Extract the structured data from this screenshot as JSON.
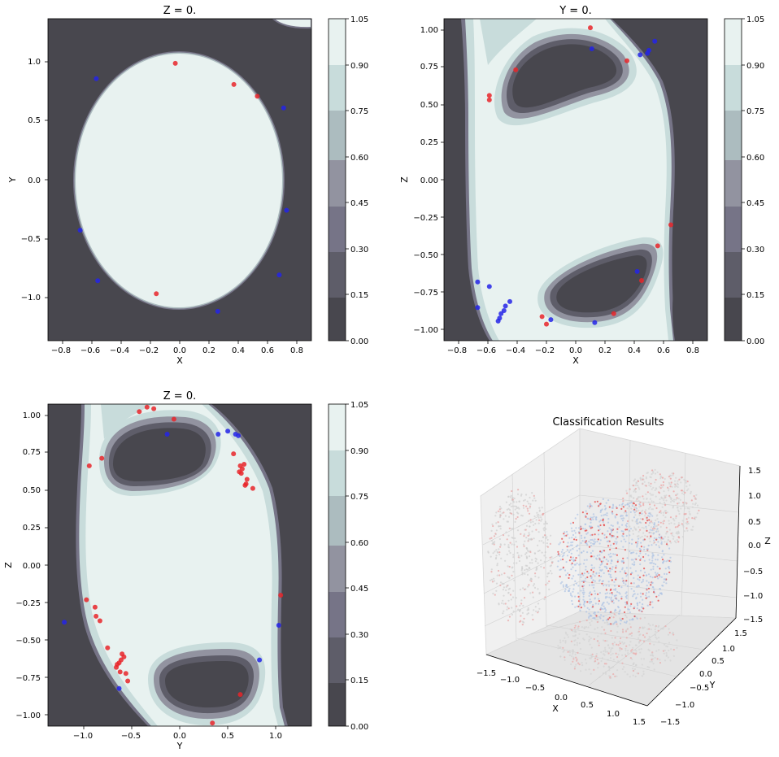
{
  "chart_data": [
    {
      "type": "contour",
      "title": "Z = 0.",
      "xlabel": "X",
      "ylabel": "Y",
      "xlim": [
        -0.9,
        0.9
      ],
      "ylim": [
        -1.37,
        1.37
      ],
      "xticks": [
        -0.8,
        -0.6,
        -0.4,
        -0.2,
        0.0,
        0.2,
        0.4,
        0.6,
        0.8
      ],
      "xticklabels": [
        "−0.8",
        "−0.6",
        "−0.4",
        "−0.2",
        "0.0",
        "0.2",
        "0.4",
        "0.6",
        "0.8"
      ],
      "yticks": [
        -1.0,
        -0.5,
        0.0,
        0.5,
        1.0
      ],
      "yticklabels": [
        "−1.0",
        "−0.5",
        "0.0",
        "0.5",
        "1.0"
      ],
      "colorbar_ticks": [
        "0.00",
        "0.15",
        "0.30",
        "0.45",
        "0.60",
        "0.75",
        "0.90",
        "1.05"
      ],
      "points_red": [
        [
          -0.03,
          0.99
        ],
        [
          0.37,
          0.81
        ],
        [
          0.53,
          0.71
        ],
        [
          -0.16,
          -0.97
        ]
      ],
      "points_blue": [
        [
          -0.57,
          0.86
        ],
        [
          0.71,
          0.61
        ],
        [
          0.73,
          -0.26
        ],
        [
          -0.68,
          -0.43
        ],
        [
          -0.56,
          -0.86
        ],
        [
          0.68,
          -0.81
        ],
        [
          0.26,
          -1.12
        ]
      ]
    },
    {
      "type": "contour",
      "title": "Y = 0.",
      "xlabel": "X",
      "ylabel": "Z",
      "xlim": [
        -0.9,
        0.9
      ],
      "ylim": [
        -1.07,
        1.07
      ],
      "xticks": [
        -0.8,
        -0.6,
        -0.4,
        -0.2,
        0.0,
        0.2,
        0.4,
        0.6,
        0.8
      ],
      "xticklabels": [
        "−0.8",
        "−0.6",
        "−0.4",
        "−0.2",
        "0.0",
        "0.2",
        "0.4",
        "0.6",
        "0.8"
      ],
      "yticks": [
        -1.0,
        -0.75,
        -0.5,
        -0.25,
        0.0,
        0.25,
        0.5,
        0.75,
        1.0
      ],
      "yticklabels": [
        "−1.00",
        "−0.75",
        "−0.50",
        "−0.25",
        "0.00",
        "0.25",
        "0.50",
        "0.75",
        "1.00"
      ],
      "colorbar_ticks": [
        "0.00",
        "0.15",
        "0.30",
        "0.45",
        "0.60",
        "0.75",
        "0.90",
        "1.05"
      ],
      "points_red": [
        [
          0.1,
          1.01
        ],
        [
          0.35,
          0.79
        ],
        [
          -0.41,
          0.73
        ],
        [
          -0.59,
          0.56
        ],
        [
          -0.59,
          0.53
        ],
        [
          0.65,
          -0.3
        ],
        [
          0.56,
          -0.44
        ],
        [
          0.45,
          -0.67
        ],
        [
          -0.23,
          -0.91
        ],
        [
          0.26,
          -0.89
        ],
        [
          -0.2,
          -0.96
        ]
      ],
      "points_blue": [
        [
          0.11,
          0.87
        ],
        [
          0.54,
          0.92
        ],
        [
          0.5,
          0.86
        ],
        [
          0.49,
          0.84
        ],
        [
          0.44,
          0.83
        ],
        [
          0.42,
          -0.61
        ],
        [
          -0.67,
          -0.68
        ],
        [
          -0.59,
          -0.71
        ],
        [
          -0.67,
          -0.85
        ],
        [
          -0.45,
          -0.81
        ],
        [
          -0.48,
          -0.84
        ],
        [
          -0.49,
          -0.87
        ],
        [
          -0.51,
          -0.89
        ],
        [
          -0.52,
          -0.92
        ],
        [
          -0.53,
          -0.94
        ],
        [
          -0.17,
          -0.93
        ],
        [
          0.13,
          -0.95
        ]
      ]
    },
    {
      "type": "contour",
      "title": "Z = 0.",
      "xlabel": "Y",
      "ylabel": "Z",
      "xlim": [
        -1.37,
        1.37
      ],
      "ylim": [
        -1.07,
        1.07
      ],
      "xticks": [
        -1.0,
        -0.5,
        0.0,
        0.5,
        1.0
      ],
      "xticklabels": [
        "−1.0",
        "−0.5",
        "0.0",
        "0.5",
        "1.0"
      ],
      "yticks": [
        -1.0,
        -0.75,
        -0.5,
        -0.25,
        0.0,
        0.25,
        0.5,
        0.75,
        1.0
      ],
      "yticklabels": [
        "−1.00",
        "−0.75",
        "−0.50",
        "−0.25",
        "0.00",
        "0.25",
        "0.50",
        "0.75",
        "1.00"
      ],
      "colorbar_ticks": [
        "0.00",
        "0.15",
        "0.30",
        "0.45",
        "0.60",
        "0.75",
        "0.90",
        "1.05"
      ],
      "points_red": [
        [
          -0.42,
          1.02
        ],
        [
          -0.34,
          1.05
        ],
        [
          -0.27,
          1.04
        ],
        [
          -0.06,
          0.97
        ],
        [
          -0.94,
          0.66
        ],
        [
          -0.81,
          0.71
        ],
        [
          0.56,
          0.74
        ],
        [
          0.63,
          0.66
        ],
        [
          0.67,
          0.67
        ],
        [
          0.65,
          0.64
        ],
        [
          0.62,
          0.62
        ],
        [
          0.64,
          0.61
        ],
        [
          0.7,
          0.57
        ],
        [
          0.69,
          0.54
        ],
        [
          0.68,
          0.53
        ],
        [
          0.76,
          0.51
        ],
        [
          1.05,
          -0.2
        ],
        [
          -0.97,
          -0.23
        ],
        [
          -0.88,
          -0.28
        ],
        [
          -0.87,
          -0.34
        ],
        [
          -0.83,
          -0.37
        ],
        [
          -0.75,
          -0.55
        ],
        [
          -0.6,
          -0.59
        ],
        [
          -0.58,
          -0.61
        ],
        [
          -0.61,
          -0.63
        ],
        [
          -0.63,
          -0.65
        ],
        [
          -0.65,
          -0.66
        ],
        [
          -0.66,
          -0.68
        ],
        [
          -0.62,
          -0.71
        ],
        [
          -0.56,
          -0.72
        ],
        [
          -0.54,
          -0.77
        ],
        [
          0.63,
          -0.86
        ],
        [
          0.34,
          -1.05
        ]
      ],
      "points_blue": [
        [
          -0.13,
          0.87
        ],
        [
          0.4,
          0.87
        ],
        [
          0.5,
          0.89
        ],
        [
          0.58,
          0.87
        ],
        [
          0.61,
          0.86
        ],
        [
          -1.2,
          -0.38
        ],
        [
          1.03,
          -0.4
        ],
        [
          0.83,
          -0.63
        ],
        [
          -0.63,
          -0.82
        ]
      ]
    },
    {
      "type": "scatter3d",
      "title": "Classification Results",
      "xlabel": "X",
      "ylabel": "Y",
      "zlabel": "Z",
      "xlim": [
        -1.5,
        1.5
      ],
      "ylim": [
        -1.5,
        1.5
      ],
      "zlim": [
        -1.5,
        1.5
      ],
      "xticklabels": [
        "−1.5",
        "−1.0",
        "−0.5",
        "0.0",
        "0.5",
        "1.0",
        "1.5"
      ],
      "yticklabels": [
        "−1.5",
        "−1.0",
        "−0.5",
        "0.0",
        "0.5",
        "1.0",
        "1.5"
      ],
      "zticklabels": [
        "−1.5",
        "−1.0",
        "−0.5",
        "0.0",
        "0.5",
        "1.0",
        "1.5"
      ]
    }
  ],
  "colors": {
    "red_point": "#e8262a",
    "blue_point": "#2424e8",
    "levels": [
      "#48474e",
      "#5e5d69",
      "#767487",
      "#9293a0",
      "#acbcbf",
      "#c8dcdb",
      "#e8f2f0"
    ]
  }
}
